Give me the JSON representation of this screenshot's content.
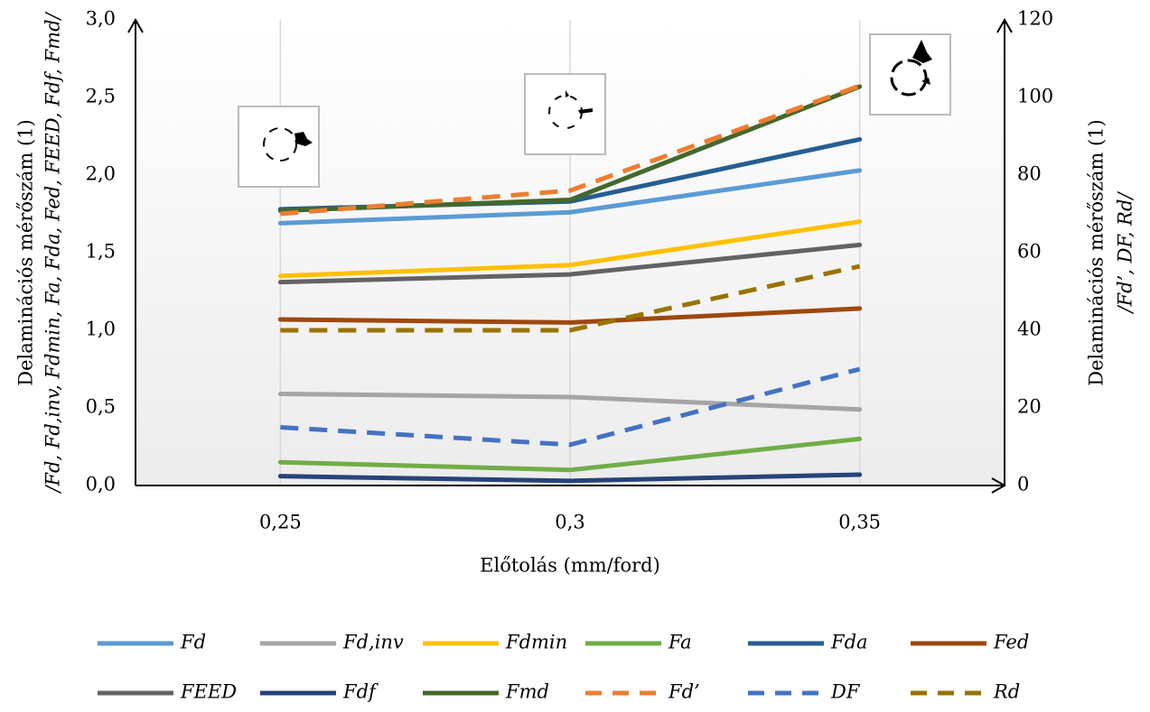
{
  "chart_data": {
    "type": "line",
    "x_label": "Előtolás (mm/ford)",
    "y_label": [
      "Delaminációs mérőszám (1)",
      "/Fd, Fd,inv, Fdmin, Fa, Fda, Fed, FEED, Fdf, Fmd/"
    ],
    "y2_label": [
      "Delaminációs mérőszám (1)",
      "/Fd’, DF, Rd/"
    ],
    "categories": [
      "0,25",
      "0,3",
      "0,35"
    ],
    "ylim": [
      0,
      3
    ],
    "yticks": [
      {
        "value": 0,
        "label": "0,0"
      },
      {
        "value": 0.5,
        "label": "0,5"
      },
      {
        "value": 1,
        "label": "1,0"
      },
      {
        "value": 1.5,
        "label": "1,5"
      },
      {
        "value": 2,
        "label": "2,0"
      },
      {
        "value": 2.5,
        "label": "2,5"
      },
      {
        "value": 3,
        "label": "3,0"
      }
    ],
    "y2lim": [
      0,
      120
    ],
    "y2ticks": [
      0,
      20,
      40,
      60,
      80,
      100,
      120
    ],
    "grid": false,
    "legend": "bottom",
    "series": [
      {
        "name": "Fd",
        "color": "#5b9bd5",
        "values": [
          1.69,
          1.76,
          2.03
        ]
      },
      {
        "name": "Fd,inv",
        "color": "#a5a5a5",
        "values": [
          0.59,
          0.57,
          0.49
        ]
      },
      {
        "name": "Fdmin",
        "color": "#ffc000",
        "values": [
          1.35,
          1.42,
          1.7
        ]
      },
      {
        "name": "Fa",
        "color": "#70ad47",
        "values": [
          0.15,
          0.1,
          0.3
        ]
      },
      {
        "name": "Fda",
        "color": "#255e91",
        "values": [
          1.78,
          1.83,
          2.23
        ]
      },
      {
        "name": "Fed",
        "color": "#9e480e",
        "values": [
          1.07,
          1.05,
          1.14
        ]
      },
      {
        "name": "FEED",
        "color": "#636363",
        "values": [
          1.31,
          1.36,
          1.55
        ]
      },
      {
        "name": "Fdf",
        "color": "#264478",
        "values": [
          0.06,
          0.03,
          0.07
        ]
      },
      {
        "name": "Fmd",
        "color": "#43682b",
        "values": [
          1.77,
          1.84,
          2.57
        ]
      },
      {
        "name": "Fd’",
        "color": "#ed7d31",
        "dashed": true,
        "axis": "y2",
        "values": [
          70,
          76,
          103
        ]
      },
      {
        "name": "DF",
        "color": "#4472c4",
        "dashed": true,
        "axis": "y2",
        "values": [
          15,
          10.5,
          30
        ]
      },
      {
        "name": "Rd",
        "color": "#997300",
        "dashed": true,
        "axis": "y2",
        "values": [
          40,
          40,
          56.5
        ]
      }
    ]
  }
}
